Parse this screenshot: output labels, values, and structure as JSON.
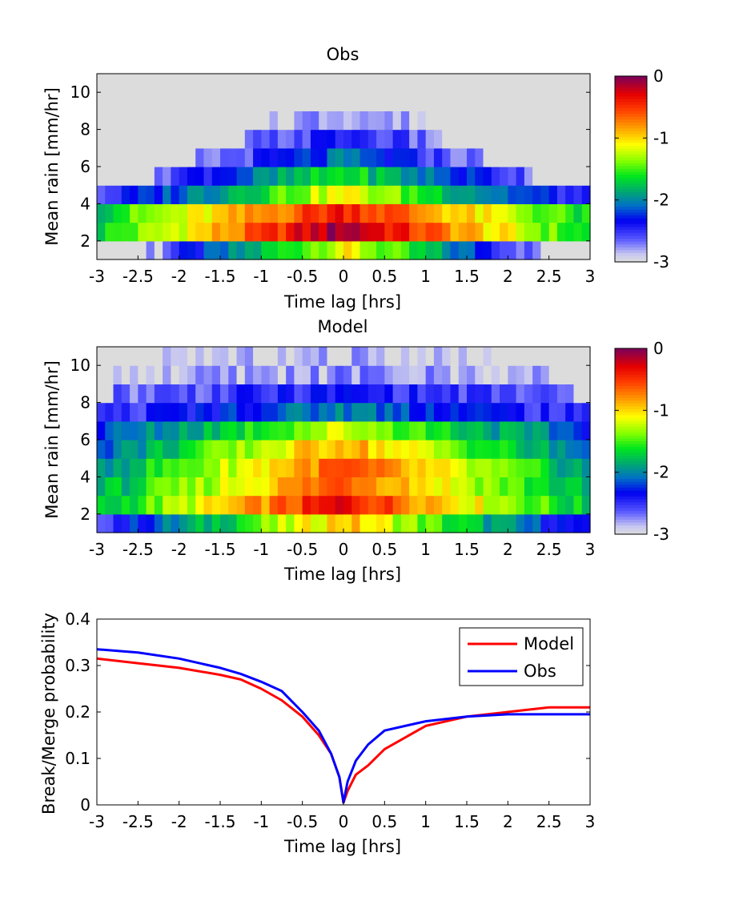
{
  "chart_data": [
    {
      "type": "heatmap",
      "title": "Obs",
      "xlabel": "Time lag [hrs]",
      "ylabel": "Mean rain [mm/hr]",
      "xlim": [
        -3,
        3
      ],
      "ylim": [
        1,
        11
      ],
      "xticks": [
        "-3",
        "-2.5",
        "-2",
        "-1.5",
        "-1",
        "-0.5",
        "0",
        "0.5",
        "1",
        "1.5",
        "2",
        "2.5",
        "3"
      ],
      "yticks": [
        "2",
        "4",
        "6",
        "8",
        "10"
      ],
      "x_bins": 60,
      "y_bin_edges": [
        1,
        2,
        3,
        4,
        5,
        6,
        7,
        8,
        9,
        10,
        11
      ],
      "colorbar": {
        "min": -3,
        "max": 0,
        "ticks": [
          "0",
          "-1",
          "-2",
          "-3"
        ],
        "colormap": "jet-like with light grey at minimum"
      },
      "value_profile": [
        {
          "y_center": 1.5,
          "peak_value": -1.1,
          "decay_per_hr": 0.7,
          "max_abs_lag": 3.0,
          "empty_below": -2.75
        },
        {
          "y_center": 2.5,
          "peak_value": -0.05,
          "decay_per_hr": 0.55,
          "max_abs_lag": 3.0,
          "empty_below": -2.75
        },
        {
          "y_center": 3.5,
          "peak_value": -0.35,
          "decay_per_hr": 0.45,
          "max_abs_lag": 3.0,
          "empty_below": -2.75
        },
        {
          "y_center": 4.5,
          "peak_value": -1.1,
          "decay_per_hr": 0.5,
          "max_abs_lag": 3.0,
          "empty_below": -2.75
        },
        {
          "y_center": 5.5,
          "peak_value": -1.6,
          "decay_per_hr": 0.45,
          "max_abs_lag": 2.3,
          "empty_below": -2.8
        },
        {
          "y_center": 6.5,
          "peak_value": -2.1,
          "decay_per_hr": 0.4,
          "max_abs_lag": 1.8,
          "empty_below": -2.85
        },
        {
          "y_center": 7.5,
          "peak_value": -2.4,
          "decay_per_hr": 0.3,
          "max_abs_lag": 1.2,
          "empty_below": -2.9
        },
        {
          "y_center": 8.5,
          "peak_value": -2.7,
          "decay_per_hr": 0.2,
          "max_abs_lag": 1.0,
          "empty_below": -2.95
        },
        {
          "y_center": 9.5,
          "peak_value": -3.0,
          "decay_per_hr": 0.0,
          "max_abs_lag": 0.0,
          "empty_below": -2.95
        },
        {
          "y_center": 10.5,
          "peak_value": -3.0,
          "decay_per_hr": 0.0,
          "max_abs_lag": 0.0,
          "empty_below": -2.95
        }
      ]
    },
    {
      "type": "heatmap",
      "title": "Model",
      "xlabel": "Time lag [hrs]",
      "ylabel": "Mean rain [mm/hr]",
      "xlim": [
        -3,
        3
      ],
      "ylim": [
        1,
        11
      ],
      "xticks": [
        "-3",
        "-2.5",
        "-2",
        "-1.5",
        "-1",
        "-0.5",
        "0",
        "0.5",
        "1",
        "1.5",
        "2",
        "2.5",
        "3"
      ],
      "yticks": [
        "2",
        "4",
        "6",
        "8",
        "10"
      ],
      "x_bins": 60,
      "y_bin_edges": [
        1,
        2,
        3,
        4,
        5,
        6,
        7,
        8,
        9,
        10,
        11
      ],
      "colorbar": {
        "min": -3,
        "max": 0,
        "ticks": [
          "0",
          "-1",
          "-2",
          "-3"
        ],
        "colormap": "jet-like with light grey at minimum"
      },
      "value_profile": [
        {
          "y_center": 1.5,
          "peak_value": -0.9,
          "decay_per_hr": 0.55,
          "max_abs_lag": 3.0,
          "empty_below": -2.75
        },
        {
          "y_center": 2.5,
          "peak_value": -0.3,
          "decay_per_hr": 0.5,
          "max_abs_lag": 3.0,
          "empty_below": -2.75
        },
        {
          "y_center": 3.5,
          "peak_value": -0.55,
          "decay_per_hr": 0.45,
          "max_abs_lag": 3.0,
          "empty_below": -2.75
        },
        {
          "y_center": 4.5,
          "peak_value": -0.6,
          "decay_per_hr": 0.45,
          "max_abs_lag": 3.0,
          "empty_below": -2.75
        },
        {
          "y_center": 5.5,
          "peak_value": -0.8,
          "decay_per_hr": 0.45,
          "max_abs_lag": 3.0,
          "empty_below": -2.75
        },
        {
          "y_center": 6.5,
          "peak_value": -1.2,
          "decay_per_hr": 0.35,
          "max_abs_lag": 3.0,
          "empty_below": -2.75
        },
        {
          "y_center": 7.5,
          "peak_value": -2.0,
          "decay_per_hr": 0.2,
          "max_abs_lag": 3.0,
          "empty_below": -2.8
        },
        {
          "y_center": 8.5,
          "peak_value": -2.4,
          "decay_per_hr": 0.1,
          "max_abs_lag": 2.8,
          "empty_below": -2.85
        },
        {
          "y_center": 9.5,
          "peak_value": -2.75,
          "decay_per_hr": 0.05,
          "max_abs_lag": 2.8,
          "empty_below": -2.9
        },
        {
          "y_center": 10.5,
          "peak_value": -2.85,
          "decay_per_hr": 0.05,
          "max_abs_lag": 2.2,
          "empty_below": -2.9
        }
      ]
    },
    {
      "type": "line",
      "title": "",
      "xlabel": "Time lag [hrs]",
      "ylabel": "Break/Merge probability",
      "xlim": [
        -3,
        3
      ],
      "ylim": [
        0,
        0.4
      ],
      "xticks": [
        "-3",
        "-2.5",
        "-2",
        "-1.5",
        "-1",
        "-0.5",
        "0",
        "0.5",
        "1",
        "1.5",
        "2",
        "2.5",
        "3"
      ],
      "yticks": [
        "0",
        "0.1",
        "0.2",
        "0.3",
        "0.4"
      ],
      "legend_position": "top-right",
      "x": [
        -3,
        -2.5,
        -2,
        -1.5,
        -1.25,
        -1,
        -0.75,
        -0.5,
        -0.3,
        -0.15,
        -0.05,
        0,
        0.05,
        0.15,
        0.3,
        0.5,
        0.75,
        1,
        1.5,
        2,
        2.5,
        3
      ],
      "series": [
        {
          "name": "Model",
          "color": "#ff0000",
          "values": [
            0.315,
            0.305,
            0.295,
            0.28,
            0.27,
            0.25,
            0.225,
            0.19,
            0.15,
            0.11,
            0.06,
            0.005,
            0.03,
            0.065,
            0.085,
            0.12,
            0.145,
            0.17,
            0.19,
            0.2,
            0.21,
            0.21
          ]
        },
        {
          "name": "Obs",
          "color": "#0000ff",
          "values": [
            0.335,
            0.328,
            0.315,
            0.295,
            0.282,
            0.265,
            0.245,
            0.2,
            0.16,
            0.11,
            0.06,
            0.005,
            0.05,
            0.095,
            0.13,
            0.16,
            0.17,
            0.18,
            0.19,
            0.195,
            0.195,
            0.195
          ]
        }
      ]
    }
  ]
}
